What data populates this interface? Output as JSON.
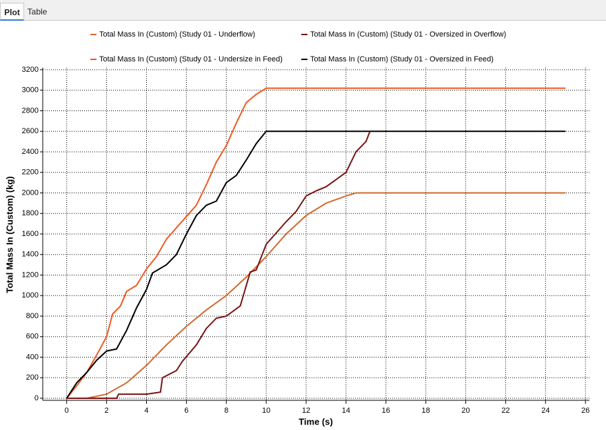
{
  "tabs": [
    "Plot",
    "Table"
  ],
  "chart_data": {
    "type": "line",
    "xlabel": "Time (s)",
    "ylabel": "Total Mass In (Custom) (kg)",
    "xlim": [
      -1.2,
      26.2
    ],
    "ylim": [
      -20,
      3220
    ],
    "xticks": [
      0,
      2,
      4,
      6,
      8,
      10,
      12,
      14,
      16,
      18,
      20,
      22,
      24,
      26
    ],
    "yticks": [
      0,
      200,
      400,
      600,
      800,
      1000,
      1200,
      1400,
      1600,
      1800,
      2000,
      2200,
      2400,
      2600,
      2800,
      3000,
      3200
    ],
    "grid": true,
    "series": [
      {
        "name": "Total Mass In (Custom) (Study 01 - Underflow)",
        "color": "#d2692e",
        "x": [
          0,
          1,
          2,
          3,
          4,
          5,
          6,
          7,
          8,
          9,
          10,
          11,
          12,
          13,
          14,
          14.5,
          25
        ],
        "values": [
          0,
          0,
          40,
          150,
          320,
          520,
          700,
          860,
          1000,
          1180,
          1380,
          1600,
          1780,
          1900,
          1970,
          2000,
          2000
        ]
      },
      {
        "name": "Total Mass In (Custom) (Study 01 - Oversized in Overflow)",
        "color": "#7a1414",
        "x": [
          0,
          2.5,
          2.6,
          4,
          4.7,
          4.8,
          5.5,
          5.8,
          6.5,
          7,
          7.5,
          8,
          8.7,
          9.2,
          9.5,
          10,
          10.5,
          11,
          11.5,
          12,
          12.5,
          13,
          13.5,
          14,
          14.5,
          15,
          15.2
        ],
        "values": [
          0,
          0,
          40,
          40,
          60,
          200,
          270,
          360,
          520,
          680,
          780,
          800,
          900,
          1230,
          1250,
          1500,
          1610,
          1720,
          1820,
          1970,
          2020,
          2060,
          2130,
          2200,
          2400,
          2500,
          2600
        ]
      },
      {
        "name": "Total Mass In (Custom) (Study 01 - Undersize in Feed)",
        "color": "#f05a22",
        "x": [
          0,
          0.5,
          1,
          1.5,
          2,
          2.3,
          2.7,
          3,
          3.5,
          4,
          4.5,
          5,
          5.5,
          6,
          6.5,
          7,
          7.5,
          8,
          8.5,
          9,
          9.5,
          10,
          25
        ],
        "values": [
          0,
          120,
          250,
          420,
          600,
          820,
          900,
          1040,
          1100,
          1260,
          1380,
          1550,
          1660,
          1770,
          1880,
          2080,
          2300,
          2460,
          2680,
          2880,
          2960,
          3020,
          3020
        ]
      },
      {
        "name": "Total Mass In (Custom) (Study 01 - Oversized in Feed)",
        "color": "#000000",
        "x": [
          0,
          0.5,
          1,
          1.5,
          2,
          2.5,
          3,
          3.5,
          4,
          4.3,
          5,
          5.5,
          6,
          6.5,
          7,
          7.5,
          8,
          8.5,
          9,
          9.5,
          10,
          25
        ],
        "values": [
          0,
          150,
          250,
          370,
          460,
          480,
          660,
          880,
          1060,
          1220,
          1300,
          1400,
          1600,
          1780,
          1880,
          1920,
          2100,
          2170,
          2320,
          2480,
          2600,
          2600
        ]
      }
    ]
  }
}
